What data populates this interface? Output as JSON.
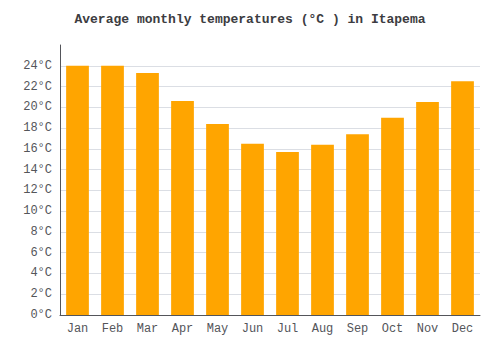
{
  "chart_data": {
    "type": "bar",
    "title": "Average monthly temperatures (°C ) in Itapema",
    "categories": [
      "Jan",
      "Feb",
      "Mar",
      "Apr",
      "May",
      "Jun",
      "Jul",
      "Aug",
      "Sep",
      "Oct",
      "Nov",
      "Dec"
    ],
    "values": [
      24.0,
      24.0,
      23.3,
      20.6,
      18.4,
      16.5,
      15.7,
      16.4,
      17.4,
      19.0,
      20.5,
      22.5
    ],
    "color": "#FFA500",
    "ylim": [
      0,
      26
    ],
    "yticks": [
      {
        "value": 0,
        "label": "0°C"
      },
      {
        "value": 2,
        "label": "2°C"
      },
      {
        "value": 4,
        "label": "4°C"
      },
      {
        "value": 6,
        "label": "6°C"
      },
      {
        "value": 8,
        "label": "8°C"
      },
      {
        "value": 10,
        "label": "10°C"
      },
      {
        "value": 12,
        "label": "12°C"
      },
      {
        "value": 14,
        "label": "14°C"
      },
      {
        "value": 16,
        "label": "16°C"
      },
      {
        "value": 18,
        "label": "18°C"
      },
      {
        "value": 20,
        "label": "20°C"
      },
      {
        "value": 22,
        "label": "22°C"
      },
      {
        "value": 24,
        "label": "24°C"
      }
    ],
    "grid": true
  }
}
